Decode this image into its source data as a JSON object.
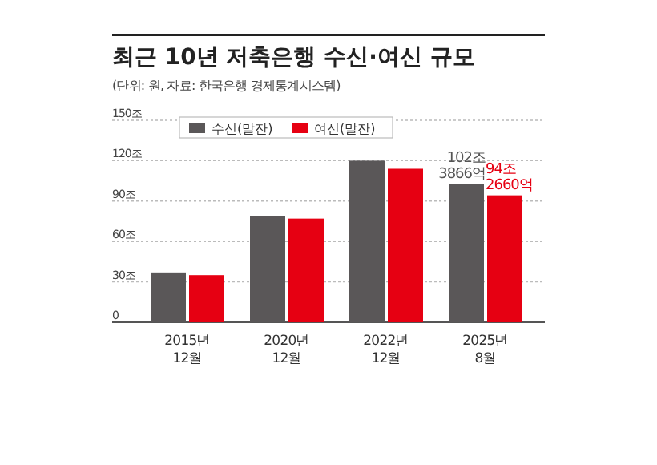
{
  "chart_data": {
    "type": "bar",
    "title": "최근 10년 저축은행 수신·여신 규모",
    "subtitle": "(단위: 원, 자료: 한국은행 경제통계시스템)",
    "categories": [
      "2015년 12월",
      "2020년 12월",
      "2022년 12월",
      "2025년 8월"
    ],
    "series": [
      {
        "name": "수신(말잔)",
        "color": "#5a5758",
        "values": [
          37,
          79,
          120,
          102.3866
        ],
        "value_labels": [
          null,
          null,
          null,
          "102조 3866억"
        ]
      },
      {
        "name": "여신(말잔)",
        "color": "#e60012",
        "values": [
          35,
          77,
          114,
          94.266
        ],
        "value_labels": [
          null,
          null,
          null,
          "94조 2660억"
        ]
      }
    ],
    "ylim": [
      0,
      150
    ],
    "yticks": [
      0,
      {
        "value": 30,
        "label": "30조"
      },
      {
        "value": 60,
        "label": "60조"
      },
      {
        "value": 90,
        "label": "90조"
      },
      {
        "value": 120,
        "label": "120조"
      },
      {
        "value": 150,
        "label": "150조"
      }
    ],
    "grid": "y",
    "legend": "top left"
  }
}
